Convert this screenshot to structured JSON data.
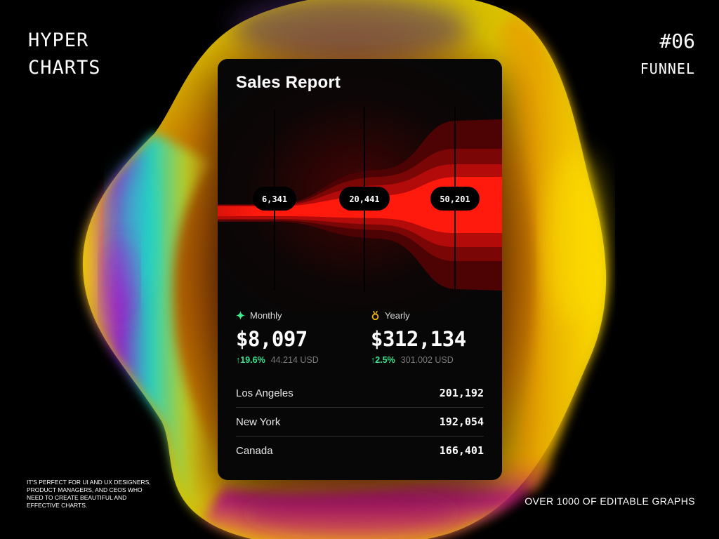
{
  "brand": {
    "line1": "HYPER",
    "line2": "CHARTS"
  },
  "badge": {
    "number": "#06",
    "type": "FUNNEL"
  },
  "footer": {
    "note": "IT'S PERFECT FOR UI AND UX DESIGNERS, PRODUCT MANAGERS, AND CEOS WHO NEED TO CREATE BEAUTIFUL AND EFFECTIVE CHARTS.",
    "tagline": "OVER 1000 OF EDITABLE GRAPHS"
  },
  "card": {
    "title": "Sales Report",
    "stages": [
      {
        "label": "6,341"
      },
      {
        "label": "20,441"
      },
      {
        "label": "50,201"
      }
    ],
    "monthly": {
      "label": "Monthly",
      "value": "$8,097",
      "change": "↑19.6%",
      "usd": "44.214 USD",
      "icon": "sparkle-icon"
    },
    "yearly": {
      "label": "Yearly",
      "value": "$312,134",
      "change": "↑2.5%",
      "usd": "301.002 USD",
      "icon": "medal-icon"
    },
    "locations": [
      {
        "city": "Los Angeles",
        "value": "201,192"
      },
      {
        "city": "New York",
        "value": "192,054"
      },
      {
        "city": "Canada",
        "value": "166,401"
      }
    ]
  },
  "colors": {
    "accent_red": "#ff1a0d",
    "positive_green": "#35e58f",
    "monthly_icon": "#3df08f",
    "yearly_icon": "#f0b400"
  }
}
